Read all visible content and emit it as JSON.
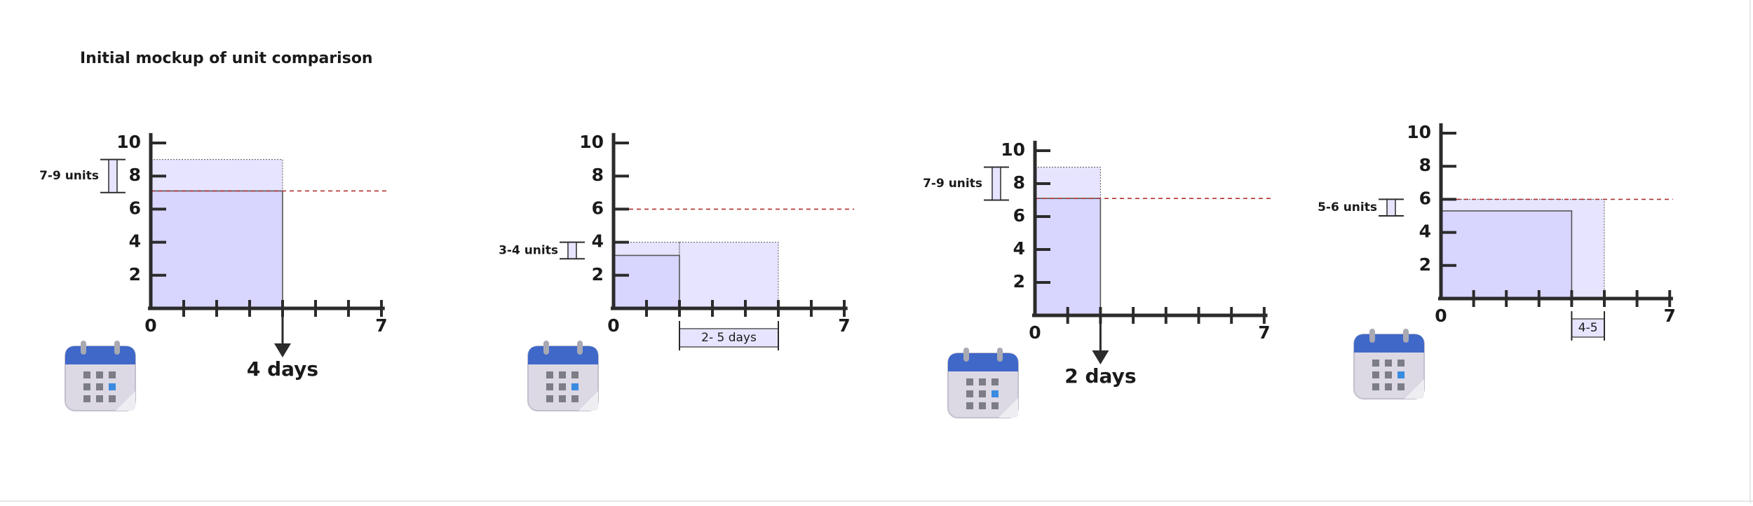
{
  "title": "Initial mockup of unit comparison",
  "panels": [
    {
      "y_ticks": [
        10,
        8,
        6,
        4,
        2
      ],
      "x_ticks": [
        0,
        7
      ],
      "range_label": "7-9 units",
      "duration_label": "4 days"
    },
    {
      "y_ticks": [
        10,
        8,
        6,
        4,
        2
      ],
      "x_ticks": [
        0,
        7
      ],
      "range_label": "3-4 units",
      "duration_label": "2- 5 days"
    },
    {
      "y_ticks": [
        10,
        8,
        6,
        4,
        2
      ],
      "x_ticks": [
        0,
        7
      ],
      "range_label": "7-9 units",
      "duration_label": "2 days"
    },
    {
      "y_ticks": [
        10,
        8,
        6,
        4,
        2
      ],
      "x_ticks": [
        0,
        7
      ],
      "range_label": "5-6 units",
      "duration_label": "4-5"
    }
  ]
}
